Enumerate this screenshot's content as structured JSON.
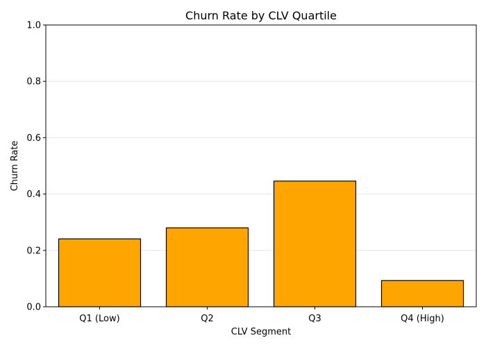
{
  "chart_data": {
    "type": "bar",
    "title": "Churn Rate by CLV Quartile",
    "xlabel": "CLV Segment",
    "ylabel": "Churn Rate",
    "categories": [
      "Q1 (Low)",
      "Q2",
      "Q3",
      "Q4 (High)"
    ],
    "values": [
      0.241,
      0.28,
      0.446,
      0.093
    ],
    "ylim": [
      0,
      1
    ],
    "yticks": [
      "0.0",
      "0.2",
      "0.4",
      "0.6",
      "0.8",
      "1.0"
    ],
    "ytick_values": [
      0,
      0.2,
      0.4,
      0.6,
      0.8,
      1.0
    ],
    "grid": "y",
    "legend": "none",
    "colors": {
      "bar_fill": "#ffa500",
      "bar_edge": "#000000",
      "grid": "#e6e6e6",
      "axis": "#000000"
    }
  }
}
